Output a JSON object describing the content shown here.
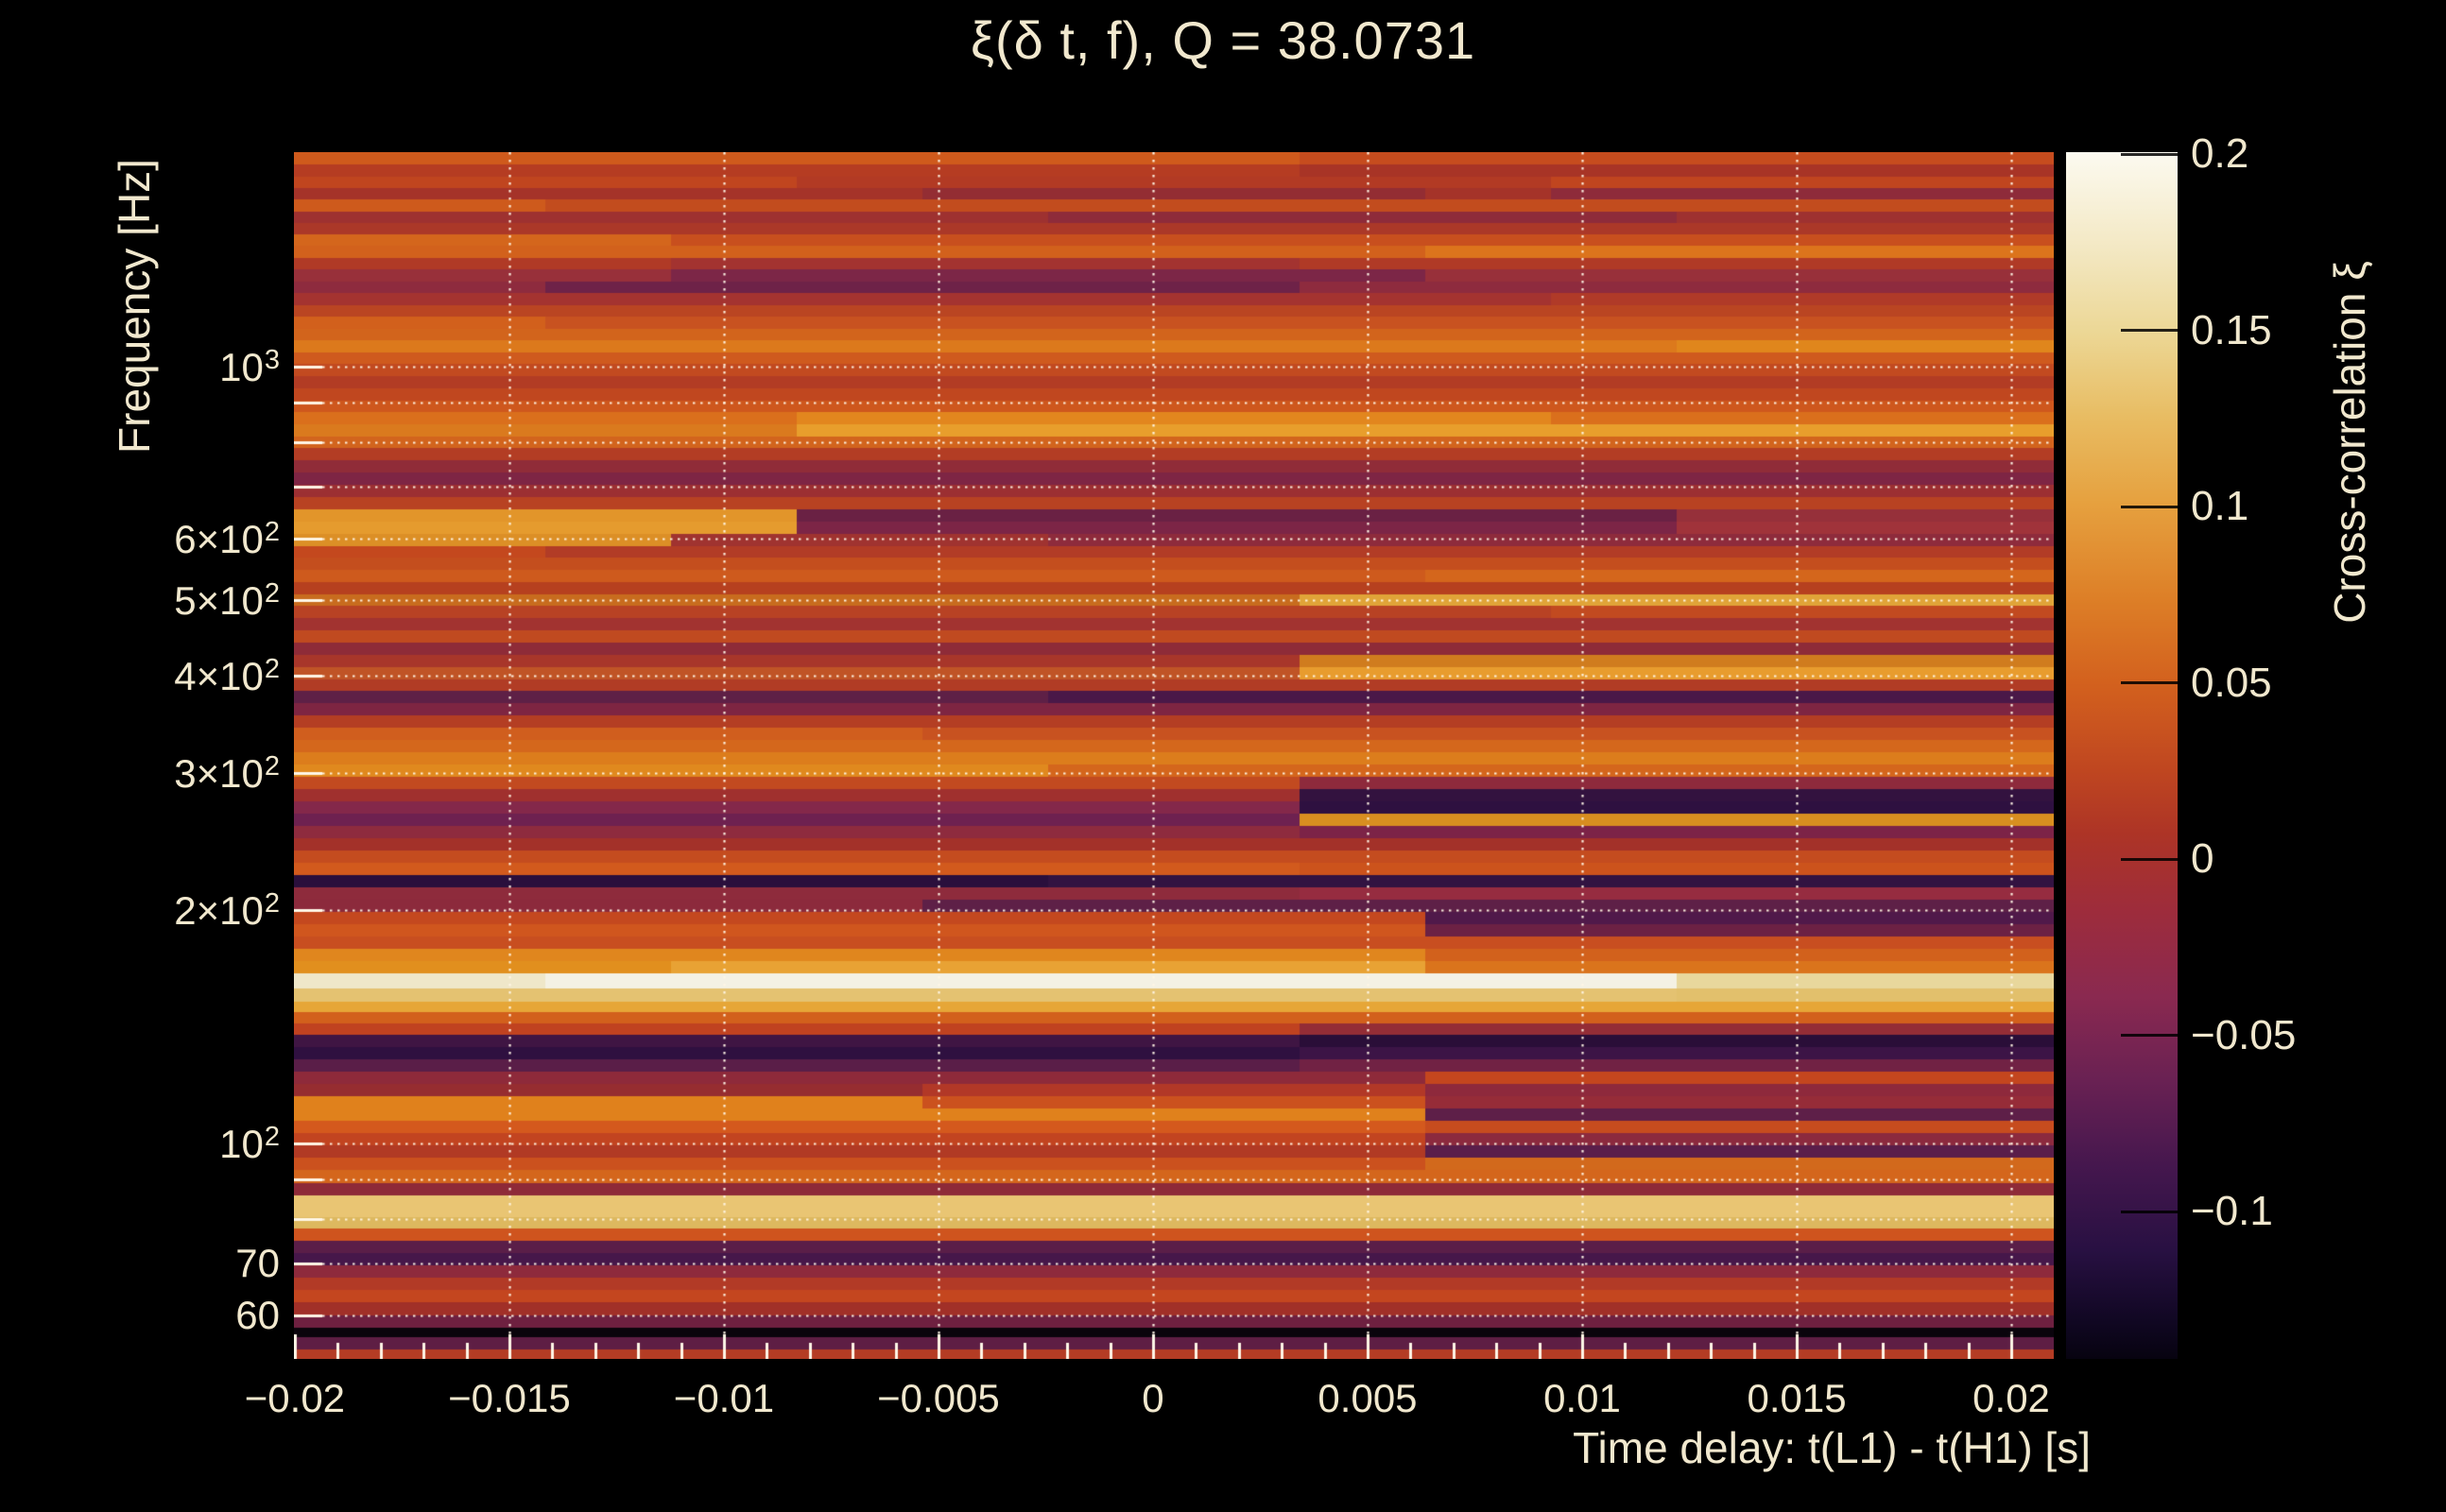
{
  "title": "ξ(δ t, f), Q = 38.0731",
  "axes": {
    "x": {
      "label": "Time delay: t(L1) - t(H1) [s]",
      "range": [
        -0.02002,
        0.02099
      ],
      "major_ticks": [
        {
          "v": -0.02,
          "label": "−0.02"
        },
        {
          "v": -0.015,
          "label": "−0.015"
        },
        {
          "v": -0.01,
          "label": "−0.01"
        },
        {
          "v": -0.005,
          "label": "−0.005"
        },
        {
          "v": 0,
          "label": "0"
        },
        {
          "v": 0.005,
          "label": "0.005"
        },
        {
          "v": 0.01,
          "label": "0.01"
        },
        {
          "v": 0.015,
          "label": "0.015"
        },
        {
          "v": 0.02,
          "label": "0.02"
        }
      ],
      "minor_step": 0.001
    },
    "y": {
      "label": "Frequency [Hz]",
      "scale": "log",
      "range_hz": [
        52.8,
        1888
      ],
      "tick_labels": [
        {
          "hz": 1000,
          "base": "10",
          "exp": "3"
        },
        {
          "hz": 600,
          "base": "6×10",
          "exp": "2"
        },
        {
          "hz": 500,
          "base": "5×10",
          "exp": "2"
        },
        {
          "hz": 400,
          "base": "4×10",
          "exp": "2"
        },
        {
          "hz": 300,
          "base": "3×10",
          "exp": "2"
        },
        {
          "hz": 200,
          "base": "2×10",
          "exp": "2"
        },
        {
          "hz": 100,
          "base": "10",
          "exp": "2"
        },
        {
          "hz": 70,
          "base": "70",
          "exp": ""
        },
        {
          "hz": 60,
          "base": "60",
          "exp": ""
        }
      ],
      "gridlines_hz": [
        60,
        70,
        80,
        90,
        100,
        200,
        300,
        400,
        500,
        600,
        700,
        800,
        900,
        1000
      ]
    },
    "colorbar": {
      "label": "Cross-correlation ξ",
      "range": [
        -0.1417,
        0.2006
      ],
      "ticks": [
        {
          "v": 0.2,
          "label": "0.2"
        },
        {
          "v": 0.15,
          "label": "0.15"
        },
        {
          "v": 0.1,
          "label": "0.1"
        },
        {
          "v": 0.05,
          "label": "0.05"
        },
        {
          "v": 0,
          "label": "0"
        },
        {
          "v": -0.05,
          "label": "−0.05"
        },
        {
          "v": -0.1,
          "label": "−0.1"
        }
      ],
      "gradient": [
        [
          0.0,
          "#fcfaf0"
        ],
        [
          0.08,
          "#f3e8c3"
        ],
        [
          0.15,
          "#ecd795"
        ],
        [
          0.22,
          "#e8bc62"
        ],
        [
          0.29,
          "#e6a13f"
        ],
        [
          0.37,
          "#dd7f27"
        ],
        [
          0.44,
          "#d3611e"
        ],
        [
          0.51,
          "#c04720"
        ],
        [
          0.565,
          "#ad3426"
        ],
        [
          0.63,
          "#9d2c3c"
        ],
        [
          0.7,
          "#8a2950"
        ],
        [
          0.77,
          "#692153"
        ],
        [
          0.84,
          "#45174e"
        ],
        [
          0.91,
          "#281042"
        ],
        [
          0.97,
          "#100722"
        ],
        [
          1.0,
          "#070310"
        ]
      ]
    }
  },
  "chart_data": {
    "type": "heatmap",
    "title": "ξ(δ t, f), Q = 38.0731",
    "xlabel": "Time delay: t(L1) - t(H1) [s]",
    "ylabel": "Frequency [Hz]",
    "zlabel": "Cross-correlation ξ",
    "q_value": 38.0731,
    "x_range_s": [
      -0.02,
      0.021
    ],
    "y_range_hz": [
      52.8,
      1888
    ],
    "z_range": [
      -0.1417,
      0.2006
    ],
    "n_cols": 14,
    "note": "rows ordered top (high frequency) to bottom (low frequency); h = band thickness px of 1277, base = band color, seg = [startCol,endCol,color] overrides",
    "rows": [
      [
        13,
        "#cf5a1c",
        [
          [
            8,
            13,
            "#c64c1e"
          ]
        ]
      ],
      [
        13,
        "#b53c22",
        [
          [
            8,
            13,
            "#a83426"
          ]
        ]
      ],
      [
        12,
        "#c0451f",
        [
          [
            4,
            9,
            "#b23a24"
          ]
        ]
      ],
      [
        12,
        "#a53329",
        [
          [
            5,
            8,
            "#932d33"
          ],
          [
            10,
            13,
            "#8e2b3a"
          ]
        ]
      ],
      [
        13,
        "#c24c1e",
        [
          [
            0,
            1,
            "#ce5a1c"
          ]
        ]
      ],
      [
        12,
        "#9e3130",
        [
          [
            6,
            10,
            "#8e2b3a"
          ]
        ]
      ],
      [
        12,
        "#ab3828",
        []
      ],
      [
        12,
        "#c84f1e",
        [
          [
            0,
            2,
            "#d4661c"
          ]
        ]
      ],
      [
        13,
        "#d2611c",
        [
          [
            9,
            13,
            "#dc741c"
          ]
        ]
      ],
      [
        12,
        "#b03a26",
        [
          [
            3,
            7,
            "#a33330"
          ]
        ]
      ],
      [
        13,
        "#98303a",
        [
          [
            3,
            8,
            "#7c2647"
          ]
        ]
      ],
      [
        12,
        "#8e2b3e",
        [
          [
            2,
            7,
            "#6e2248"
          ]
        ]
      ],
      [
        13,
        "#a43330",
        [
          [
            10,
            13,
            "#b03a28"
          ]
        ]
      ],
      [
        12,
        "#ba4522",
        []
      ],
      [
        13,
        "#c85220",
        [
          [
            0,
            1,
            "#d2601c"
          ]
        ]
      ],
      [
        12,
        "#d2641c",
        []
      ],
      [
        13,
        "#dc791c",
        [
          [
            11,
            13,
            "#e0861c"
          ]
        ]
      ],
      [
        12,
        "#cf5a1e",
        []
      ],
      [
        13,
        "#c24a20",
        []
      ],
      [
        13,
        "#b23c24",
        []
      ],
      [
        13,
        "#c0471f",
        []
      ],
      [
        12,
        "#ce571d",
        []
      ],
      [
        13,
        "#da6f1c",
        [
          [
            4,
            9,
            "#e2861e"
          ]
        ]
      ],
      [
        13,
        "#e89e2c",
        [
          [
            0,
            3,
            "#da7a1e"
          ]
        ]
      ],
      [
        12,
        "#d2641d",
        []
      ],
      [
        13,
        "#b33d24",
        []
      ],
      [
        13,
        "#902c38",
        []
      ],
      [
        13,
        "#7e2544",
        []
      ],
      [
        13,
        "#9c2f32",
        []
      ],
      [
        13,
        "#b84222",
        []
      ],
      [
        13,
        "#6a2144",
        [
          [
            0,
            3,
            "#e2952a"
          ],
          [
            11,
            13,
            "#96303a"
          ]
        ]
      ],
      [
        13,
        "#7c2546",
        [
          [
            0,
            3,
            "#e59b2e"
          ],
          [
            11,
            13,
            "#a0333a"
          ]
        ]
      ],
      [
        13,
        "#8e2b3c",
        [
          [
            0,
            2,
            "#dc8f26"
          ],
          [
            3,
            5,
            "#a03330"
          ]
        ]
      ],
      [
        12,
        "#b23c26",
        [
          [
            0,
            1,
            "#c4481e"
          ]
        ]
      ],
      [
        13,
        "#c44e1e",
        []
      ],
      [
        13,
        "#ce5a1d",
        [
          [
            9,
            13,
            "#d4661c"
          ]
        ]
      ],
      [
        13,
        "#b6401f",
        []
      ],
      [
        12,
        "#c86c1e",
        [
          [
            8,
            13,
            "#e0a438"
          ]
        ]
      ],
      [
        13,
        "#b84224",
        [
          [
            10,
            13,
            "#c24a20"
          ]
        ]
      ],
      [
        13,
        "#a23330",
        []
      ],
      [
        13,
        "#c04a20",
        []
      ],
      [
        13,
        "#8e2b38",
        []
      ],
      [
        13,
        "#a8362a",
        [
          [
            8,
            13,
            "#d07c1e"
          ]
        ]
      ],
      [
        13,
        "#c05426",
        [
          [
            8,
            13,
            "#e89c2e"
          ]
        ]
      ],
      [
        12,
        "#b13c25",
        []
      ],
      [
        13,
        "#5e2046",
        [
          [
            6,
            13,
            "#4a1848"
          ]
        ]
      ],
      [
        13,
        "#7e2542",
        []
      ],
      [
        13,
        "#b43e23",
        []
      ],
      [
        13,
        "#c85220",
        [
          [
            0,
            4,
            "#d05e1e"
          ]
        ]
      ],
      [
        13,
        "#d4671c",
        []
      ],
      [
        13,
        "#dc7d1c",
        []
      ],
      [
        13,
        "#e0891e",
        [
          [
            6,
            13,
            "#d4661c"
          ]
        ]
      ],
      [
        13,
        "#c24a20",
        [
          [
            8,
            13,
            "#8e2a3c"
          ]
        ]
      ],
      [
        13,
        "#a0302e",
        [
          [
            8,
            13,
            "#33123f"
          ]
        ]
      ],
      [
        13,
        "#84284a",
        [
          [
            8,
            13,
            "#2e1040"
          ]
        ]
      ],
      [
        13,
        "#6e2150",
        [
          [
            8,
            13,
            "#d88e20"
          ]
        ]
      ],
      [
        13,
        "#8e2b3e",
        [
          [
            8,
            13,
            "#7c2347"
          ]
        ]
      ],
      [
        13,
        "#a33129",
        []
      ],
      [
        13,
        "#c44c1f",
        []
      ],
      [
        13,
        "#d25a1d",
        [
          [
            8,
            13,
            "#cc531c"
          ]
        ]
      ],
      [
        13,
        "#321341",
        [
          [
            0,
            5,
            "#2a0f3c"
          ]
        ]
      ],
      [
        13,
        "#8e2b3c",
        [
          [
            8,
            13,
            "#962c40"
          ]
        ]
      ],
      [
        13,
        "#5e2047",
        [
          [
            0,
            4,
            "#8c2a3c"
          ]
        ]
      ],
      [
        13,
        "#c4481f",
        [
          [
            9,
            13,
            "#50194a"
          ]
        ]
      ],
      [
        13,
        "#d0561e",
        [
          [
            9,
            13,
            "#6c2144"
          ]
        ]
      ],
      [
        13,
        "#c84e20",
        []
      ],
      [
        13,
        "#e0861e",
        [
          [
            9,
            13,
            "#d2611c"
          ]
        ]
      ],
      [
        13,
        "#e8a234",
        [
          [
            0,
            2,
            "#e18f1e"
          ],
          [
            9,
            13,
            "#da741c"
          ]
        ]
      ],
      [
        16,
        "#f4f1e4",
        [
          [
            0,
            1,
            "#efe7c9"
          ],
          [
            11,
            13,
            "#e8d79c"
          ]
        ]
      ],
      [
        14,
        "#e4c271",
        [
          [
            11,
            13,
            "#e2c06c"
          ]
        ]
      ],
      [
        11,
        "#e6a637",
        []
      ],
      [
        12,
        "#d2601c",
        []
      ],
      [
        12,
        "#c04220",
        [
          [
            8,
            13,
            "#942d36"
          ]
        ]
      ],
      [
        13,
        "#3f1543",
        [
          [
            8,
            13,
            "#2a0e38"
          ]
        ]
      ],
      [
        13,
        "#2f1040",
        [
          [
            8,
            13,
            "#3c1446"
          ]
        ]
      ],
      [
        13,
        "#5a1e48",
        [
          [
            8,
            13,
            "#712244"
          ]
        ]
      ],
      [
        13,
        "#8e2a3a",
        [
          [
            9,
            13,
            "#c4461e"
          ]
        ]
      ],
      [
        13,
        "#b23827",
        [
          [
            0,
            4,
            "#962d30"
          ],
          [
            9,
            13,
            "#8e293c"
          ]
        ]
      ],
      [
        13,
        "#cb511e",
        [
          [
            0,
            4,
            "#e0811c"
          ],
          [
            9,
            13,
            "#962c38"
          ]
        ]
      ],
      [
        13,
        "#e0811c",
        [
          [
            9,
            13,
            "#5e1f48"
          ]
        ]
      ],
      [
        13,
        "#d4591d",
        [
          [
            9,
            13,
            "#c74c1e"
          ]
        ]
      ],
      [
        13,
        "#c24420",
        [
          [
            9,
            13,
            "#8c2a3e"
          ]
        ]
      ],
      [
        13,
        "#b13a24",
        [
          [
            9,
            13,
            "#5a1e4a"
          ]
        ]
      ],
      [
        13,
        "#cb511e",
        [
          [
            9,
            13,
            "#d2691c"
          ]
        ]
      ],
      [
        14,
        "#d4661c",
        []
      ],
      [
        13,
        "#8e2a38",
        []
      ],
      [
        23,
        "#e9c573",
        []
      ],
      [
        12,
        "#ddb85f",
        []
      ],
      [
        13,
        "#cf541e",
        []
      ],
      [
        13,
        "#5a1e48",
        []
      ],
      [
        13,
        "#46174a",
        []
      ],
      [
        13,
        "#8e2a3c",
        []
      ],
      [
        13,
        "#b23a26",
        []
      ],
      [
        13,
        "#c4461f",
        []
      ],
      [
        14,
        "#a13028",
        []
      ],
      [
        13,
        "#6e2040",
        []
      ],
      [
        10,
        "#0a040c",
        []
      ],
      [
        13,
        "#5e1e44",
        []
      ],
      [
        10,
        "#b43c24",
        []
      ]
    ]
  },
  "style_colors": {
    "background": "#000000",
    "text": "#f1e8ce",
    "gridline": "#fff6e6"
  }
}
